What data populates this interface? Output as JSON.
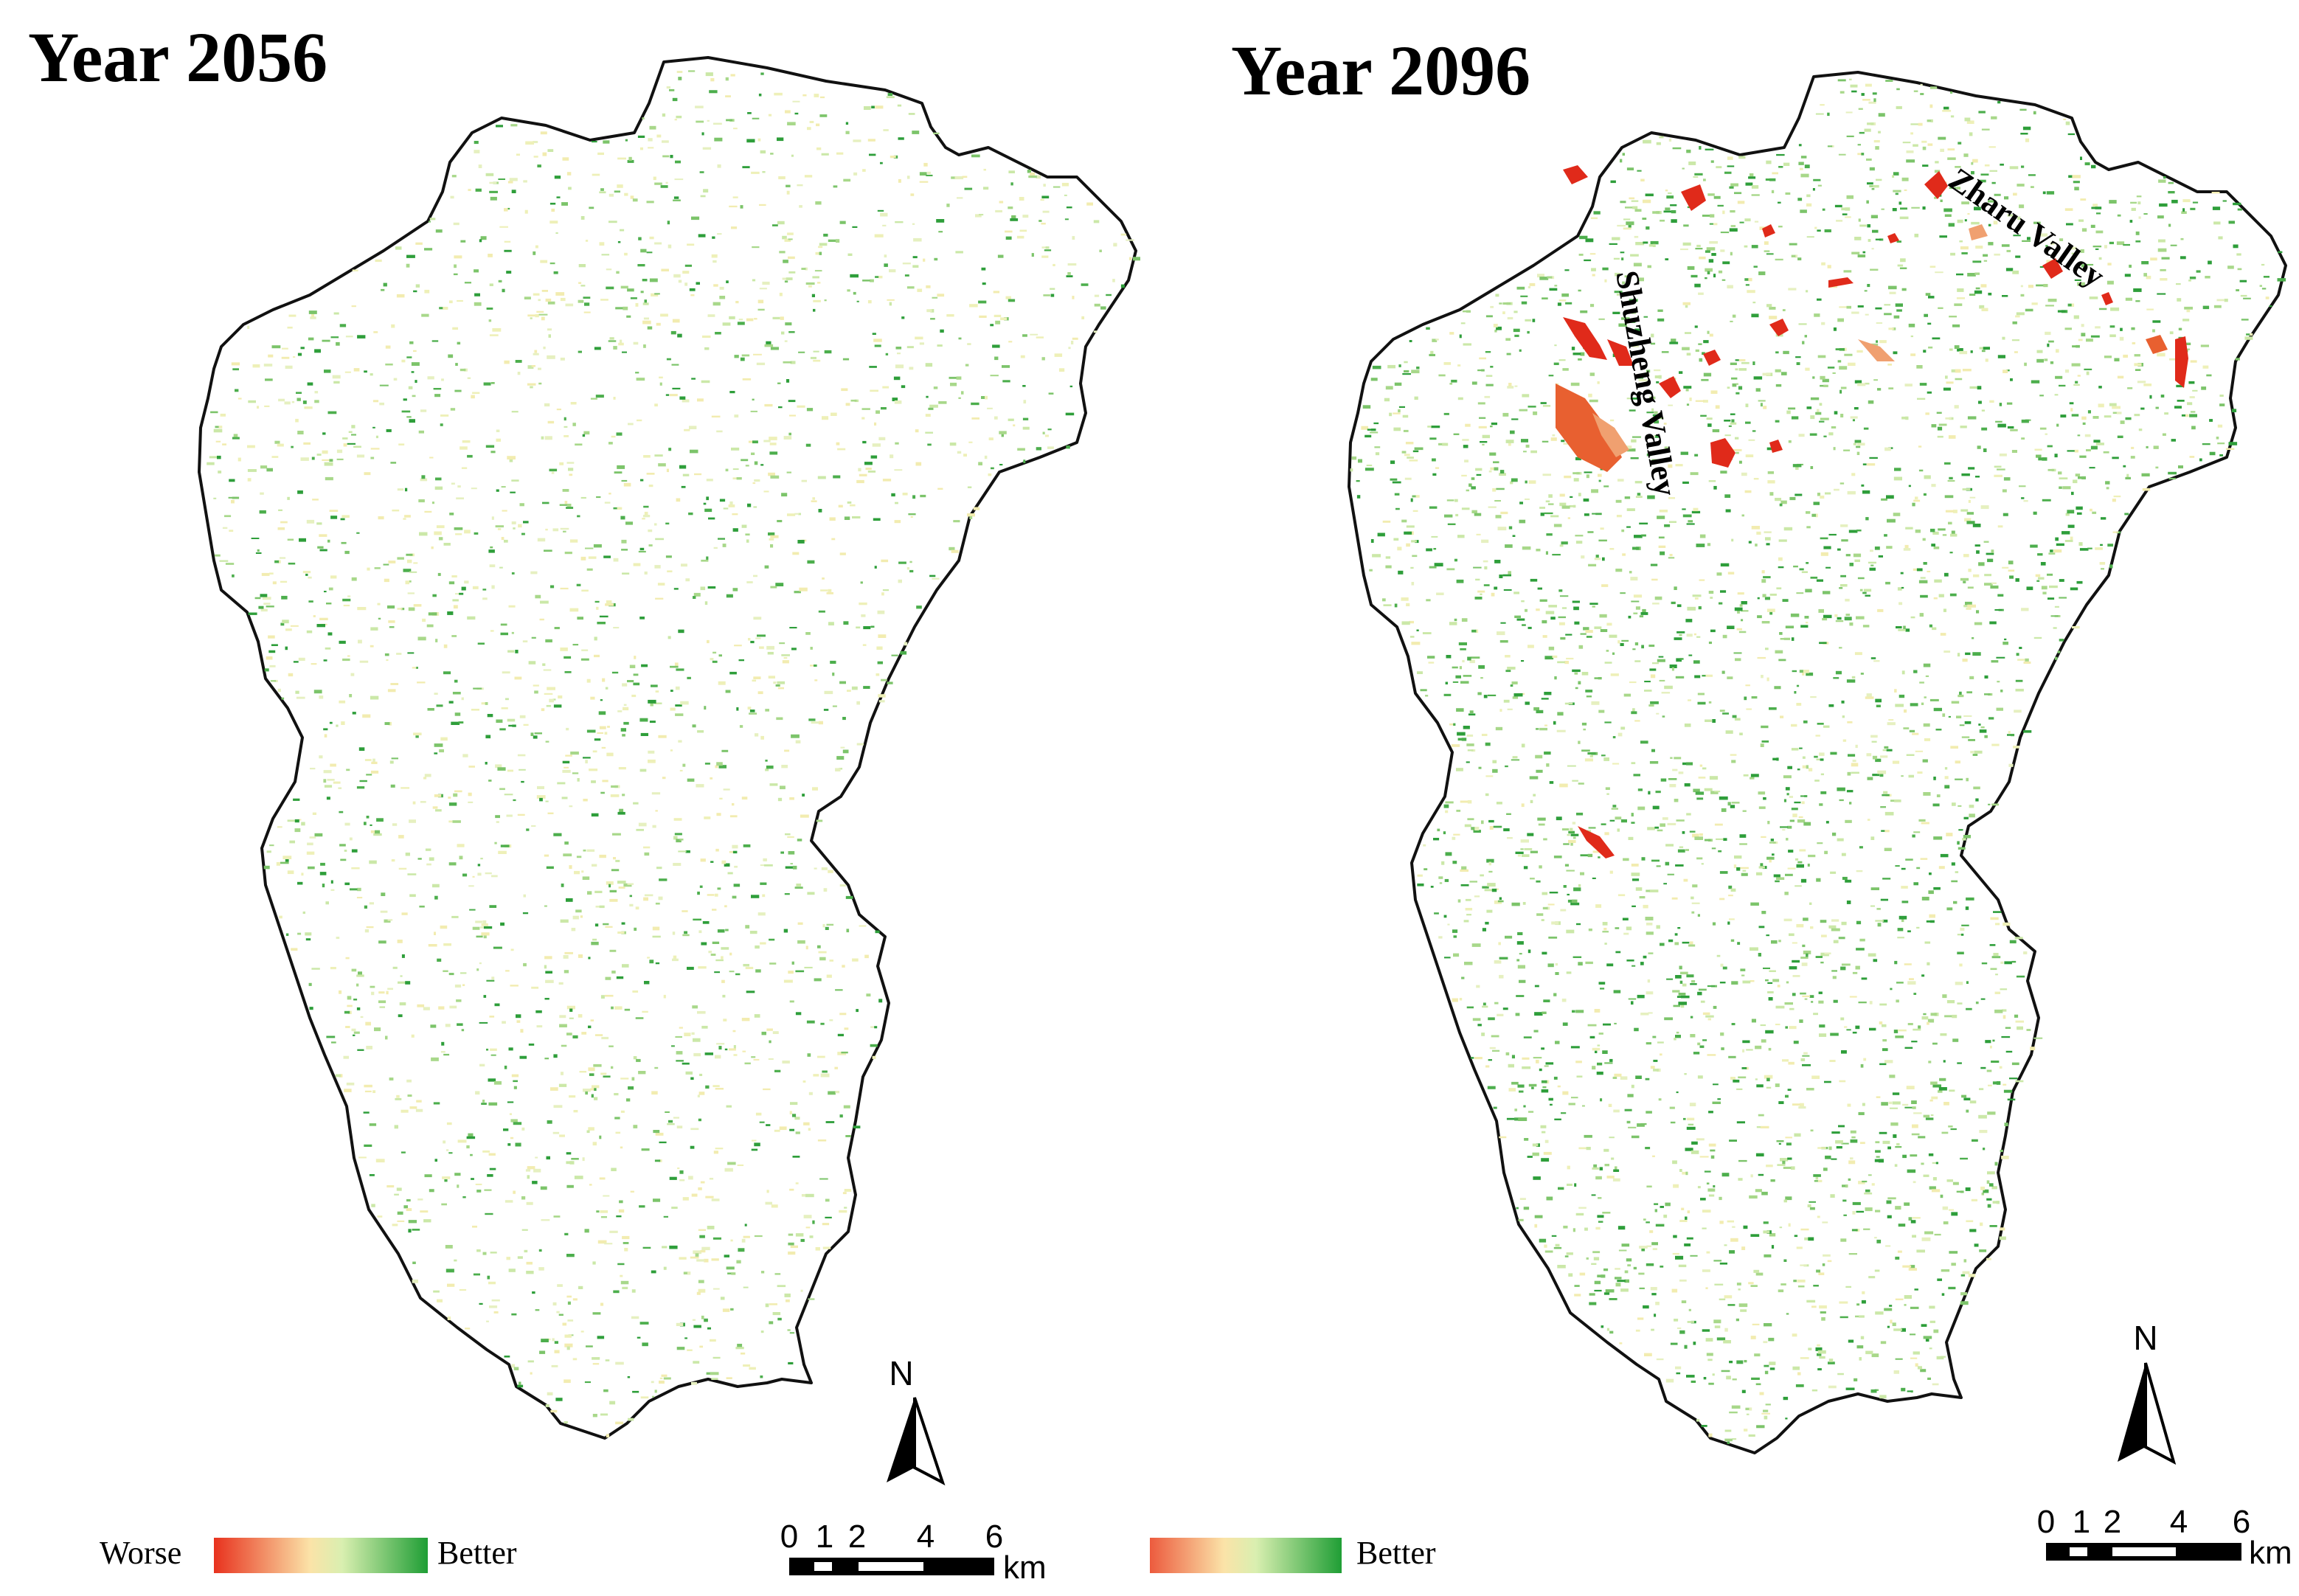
{
  "panels": [
    {
      "title": "Year 2056",
      "valley_labels": []
    },
    {
      "title": "Year 2096",
      "valley_labels": [
        "Shuzheng Valley",
        "Zharu Valley"
      ]
    }
  ],
  "legend": {
    "low_label": "Worse",
    "high_label": "Better",
    "colors": [
      "#e8321e",
      "#fbe3a8",
      "#d9efb0",
      "#1f9e35"
    ]
  },
  "scale_bar": {
    "ticks": [
      "0",
      "1",
      "2",
      "4",
      "6"
    ],
    "unit": "km"
  },
  "north_arrow": {
    "label": "N"
  },
  "colors": {
    "outline": "#111111",
    "better": "#2e9e3a",
    "worse": "#e02a1a",
    "neutral": "#f6eaa0"
  }
}
